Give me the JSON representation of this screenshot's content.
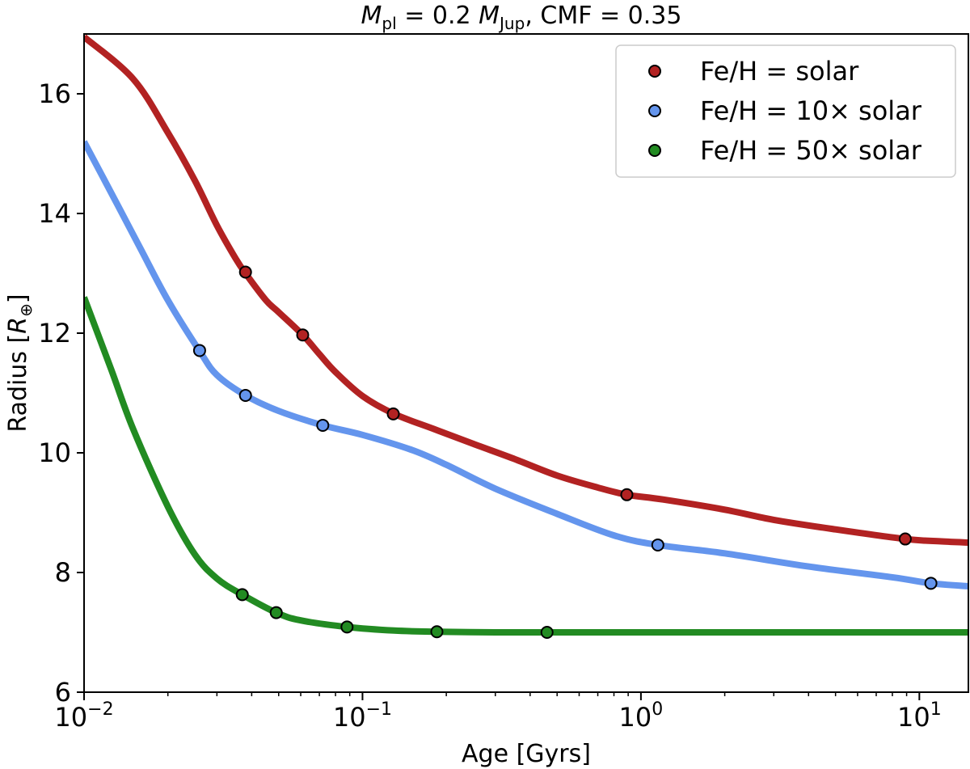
{
  "chart_data": {
    "type": "line",
    "title": {
      "m_symbol": "M",
      "m_sub": "pl",
      "eq": " = 0.2 ",
      "mj_symbol": "M",
      "mj_sub": "Jup",
      "rest": ", CMF = 0.35"
    },
    "xlabel": "Age [Gyrs]",
    "ylabel": "Radius [R⊕]",
    "ylabel_parts": {
      "pre": "Radius [",
      "sym": "R",
      "sub": "⊕",
      "post": "]"
    },
    "xscale": "log",
    "xlim": [
      0.01,
      15
    ],
    "ylim": [
      6,
      17
    ],
    "yticks": [
      6,
      8,
      10,
      12,
      14,
      16
    ],
    "ytick_labels": [
      "6",
      "8",
      "10",
      "12",
      "14",
      "16"
    ],
    "xticks": [
      {
        "value": 0.01,
        "base": "10",
        "exp": "−2"
      },
      {
        "value": 0.1,
        "base": "10",
        "exp": "−1"
      },
      {
        "value": 1,
        "base": "10",
        "exp": "0"
      },
      {
        "value": 10,
        "base": "10",
        "exp": "1"
      }
    ],
    "grid": false,
    "legend_position": "top-right",
    "series": [
      {
        "name": "Fe/H = solar",
        "color": "#b22222",
        "curve": [
          [
            0.01,
            16.95
          ],
          [
            0.015,
            16.25
          ],
          [
            0.02,
            15.35
          ],
          [
            0.025,
            14.55
          ],
          [
            0.03,
            13.8
          ],
          [
            0.035,
            13.25
          ],
          [
            0.038,
            13.0
          ],
          [
            0.045,
            12.55
          ],
          [
            0.05,
            12.35
          ],
          [
            0.061,
            11.97
          ],
          [
            0.07,
            11.65
          ],
          [
            0.08,
            11.35
          ],
          [
            0.1,
            10.95
          ],
          [
            0.13,
            10.65
          ],
          [
            0.18,
            10.4
          ],
          [
            0.25,
            10.15
          ],
          [
            0.35,
            9.9
          ],
          [
            0.5,
            9.62
          ],
          [
            0.7,
            9.42
          ],
          [
            0.89,
            9.3
          ],
          [
            1.2,
            9.22
          ],
          [
            2.0,
            9.05
          ],
          [
            3.0,
            8.88
          ],
          [
            5.0,
            8.72
          ],
          [
            8.9,
            8.56
          ],
          [
            12.0,
            8.52
          ],
          [
            15.0,
            8.5
          ]
        ],
        "markers": [
          [
            0.038,
            13.02
          ],
          [
            0.061,
            11.97
          ],
          [
            0.129,
            10.65
          ],
          [
            0.89,
            9.3
          ],
          [
            8.9,
            8.56
          ]
        ]
      },
      {
        "name": "Fe/H = 10× solar",
        "color": "#6495ed",
        "curve": [
          [
            0.01,
            15.2
          ],
          [
            0.013,
            14.2
          ],
          [
            0.016,
            13.4
          ],
          [
            0.02,
            12.55
          ],
          [
            0.026,
            11.7
          ],
          [
            0.03,
            11.3
          ],
          [
            0.038,
            10.96
          ],
          [
            0.05,
            10.7
          ],
          [
            0.072,
            10.46
          ],
          [
            0.1,
            10.3
          ],
          [
            0.15,
            10.05
          ],
          [
            0.2,
            9.8
          ],
          [
            0.3,
            9.4
          ],
          [
            0.5,
            8.98
          ],
          [
            0.8,
            8.62
          ],
          [
            1.15,
            8.46
          ],
          [
            2.0,
            8.32
          ],
          [
            4.0,
            8.1
          ],
          [
            8.0,
            7.92
          ],
          [
            11.0,
            7.82
          ],
          [
            15.0,
            7.77
          ]
        ],
        "markers": [
          [
            0.026,
            11.71
          ],
          [
            0.038,
            10.96
          ],
          [
            0.072,
            10.46
          ],
          [
            1.15,
            8.46
          ],
          [
            11.0,
            7.82
          ]
        ]
      },
      {
        "name": "Fe/H = 50× solar",
        "color": "#228b22",
        "curve": [
          [
            0.01,
            12.6
          ],
          [
            0.0125,
            11.4
          ],
          [
            0.015,
            10.4
          ],
          [
            0.02,
            9.1
          ],
          [
            0.025,
            8.3
          ],
          [
            0.03,
            7.9
          ],
          [
            0.037,
            7.63
          ],
          [
            0.049,
            7.33
          ],
          [
            0.06,
            7.2
          ],
          [
            0.088,
            7.09
          ],
          [
            0.13,
            7.03
          ],
          [
            0.185,
            7.01
          ],
          [
            0.3,
            7.0
          ],
          [
            0.46,
            7.0
          ],
          [
            1.0,
            7.0
          ],
          [
            15.0,
            7.0
          ]
        ],
        "markers": [
          [
            0.037,
            7.63
          ],
          [
            0.049,
            7.33
          ],
          [
            0.088,
            7.09
          ],
          [
            0.185,
            7.01
          ],
          [
            0.46,
            7.0
          ]
        ]
      }
    ]
  }
}
